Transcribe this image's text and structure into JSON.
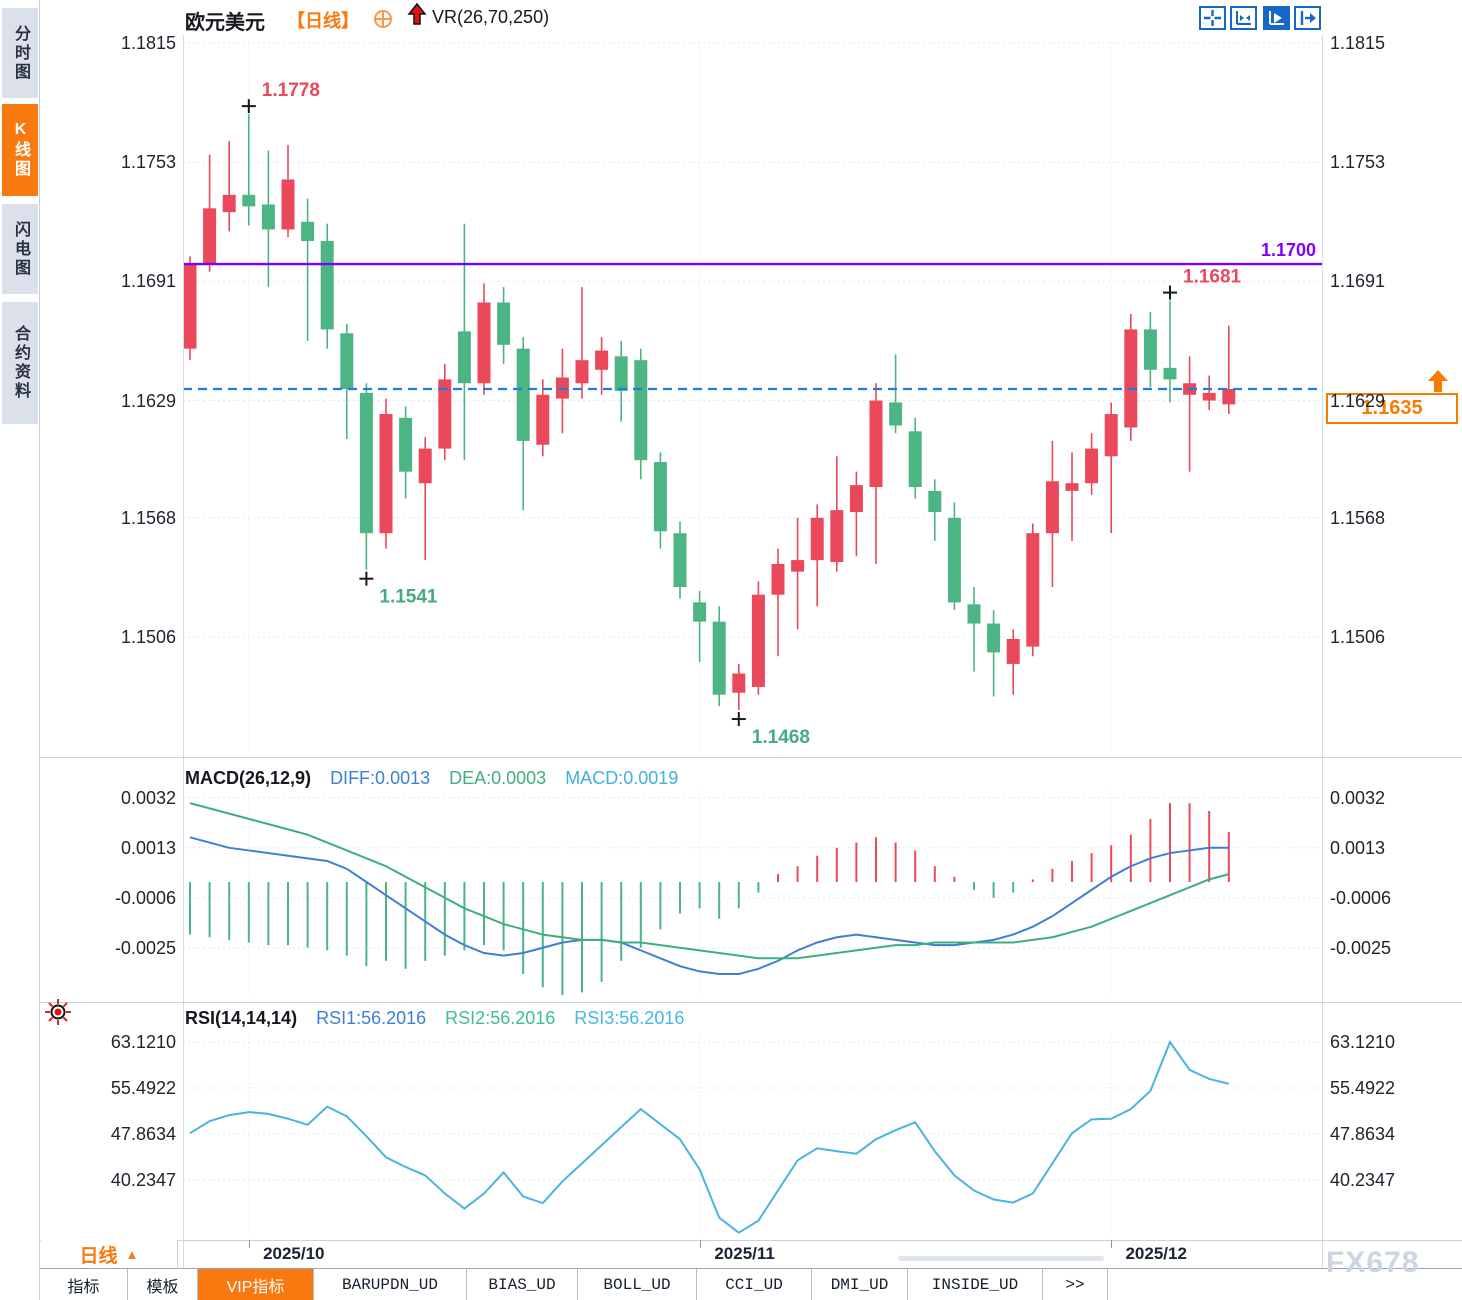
{
  "header": {
    "symbol": "欧元美元",
    "period_tag": "【日线】",
    "overlay_indicator": "VR(26,70,250)",
    "toolbar_icons": [
      "pan-crosshair",
      "axis-range",
      "axis-pointer-active",
      "exit-right"
    ]
  },
  "sidebar": {
    "items": [
      {
        "label": "分时图",
        "active": false
      },
      {
        "label": "K线图",
        "active": true
      },
      {
        "label": "闪电图",
        "active": false
      },
      {
        "label": "合约资料",
        "active": false
      }
    ]
  },
  "colors": {
    "up": "#e9495b",
    "down": "#4cb583",
    "purple_line": "#8000ff",
    "last_price_line": "#1d7de0",
    "price_box": "#f57c00",
    "diff_line": "#3d7fd6",
    "dea_line": "#3fae7e",
    "rsi_line": "#4bb3e0",
    "annotation_high": "#e8495b",
    "annotation_low": "#45ab7e",
    "active_tab": "#f8790f"
  },
  "chart_data": [
    {
      "type": "candlestick",
      "title": "欧元美元 日线 (EUR/USD daily)",
      "ylim": [
        1.1445,
        1.1815
      ],
      "y_ticks": [
        "1.1815",
        "1.1753",
        "1.1691",
        "1.1629",
        "1.1568",
        "1.1506"
      ],
      "x_dates": [
        {
          "label": "2025/10",
          "index": 3
        },
        {
          "label": "2025/11",
          "index": 26
        },
        {
          "label": "2025/12",
          "index": 47
        }
      ],
      "hline": {
        "value": 1.17,
        "label": "1.1700"
      },
      "last_price": {
        "value": 1.1635,
        "label": "1.1635"
      },
      "annotations": [
        {
          "index": 3,
          "label": "1.1778",
          "side": "high"
        },
        {
          "index": 9,
          "label": "1.1541",
          "side": "low"
        },
        {
          "index": 28,
          "label": "1.1468",
          "side": "low"
        },
        {
          "index": 50,
          "label": "1.1681",
          "side": "high"
        }
      ],
      "ohlc": [
        [
          1.1656,
          1.1704,
          1.165,
          1.17
        ],
        [
          1.17,
          1.1757,
          1.1696,
          1.1729
        ],
        [
          1.1727,
          1.1764,
          1.1717,
          1.1736
        ],
        [
          1.1736,
          1.1778,
          1.172,
          1.173
        ],
        [
          1.1731,
          1.1759,
          1.1688,
          1.1718
        ],
        [
          1.1718,
          1.1762,
          1.1714,
          1.1744
        ],
        [
          1.1722,
          1.1734,
          1.166,
          1.1712
        ],
        [
          1.1712,
          1.1721,
          1.1656,
          1.1666
        ],
        [
          1.1664,
          1.1669,
          1.1609,
          1.1635
        ],
        [
          1.1633,
          1.1638,
          1.1541,
          1.156
        ],
        [
          1.156,
          1.163,
          1.1552,
          1.1622
        ],
        [
          1.162,
          1.1626,
          1.1578,
          1.1592
        ],
        [
          1.1586,
          1.161,
          1.1546,
          1.1604
        ],
        [
          1.1604,
          1.1648,
          1.1598,
          1.164
        ],
        [
          1.1665,
          1.1721,
          1.1598,
          1.1638
        ],
        [
          1.1638,
          1.169,
          1.1632,
          1.168
        ],
        [
          1.168,
          1.1688,
          1.1648,
          1.1658
        ],
        [
          1.1656,
          1.1662,
          1.1572,
          1.1608
        ],
        [
          1.1606,
          1.164,
          1.16,
          1.1632
        ],
        [
          1.163,
          1.1656,
          1.1612,
          1.1641
        ],
        [
          1.1638,
          1.1688,
          1.163,
          1.165
        ],
        [
          1.1645,
          1.1662,
          1.1632,
          1.1655
        ],
        [
          1.1652,
          1.166,
          1.1618,
          1.1634
        ],
        [
          1.165,
          1.1656,
          1.1588,
          1.1598
        ],
        [
          1.1597,
          1.1602,
          1.1552,
          1.1561
        ],
        [
          1.156,
          1.1566,
          1.1526,
          1.1532
        ],
        [
          1.1524,
          1.153,
          1.1493,
          1.1514
        ],
        [
          1.1514,
          1.1522,
          1.147,
          1.1476
        ],
        [
          1.1477,
          1.1492,
          1.1468,
          1.1487
        ],
        [
          1.148,
          1.1535,
          1.1476,
          1.1528
        ],
        [
          1.1528,
          1.1552,
          1.1496,
          1.1544
        ],
        [
          1.154,
          1.1568,
          1.151,
          1.1546
        ],
        [
          1.1546,
          1.1575,
          1.1522,
          1.1568
        ],
        [
          1.1545,
          1.16,
          1.154,
          1.1572
        ],
        [
          1.1571,
          1.1592,
          1.1548,
          1.1585
        ],
        [
          1.1584,
          1.1638,
          1.1544,
          1.1629
        ],
        [
          1.1628,
          1.1653,
          1.1612,
          1.1616
        ],
        [
          1.1613,
          1.162,
          1.1578,
          1.1584
        ],
        [
          1.1582,
          1.1588,
          1.1556,
          1.1571
        ],
        [
          1.1568,
          1.1576,
          1.152,
          1.1524
        ],
        [
          1.1523,
          1.1532,
          1.1488,
          1.1513
        ],
        [
          1.1513,
          1.152,
          1.1475,
          1.1498
        ],
        [
          1.1492,
          1.151,
          1.1476,
          1.1505
        ],
        [
          1.1501,
          1.1565,
          1.1496,
          1.156
        ],
        [
          1.156,
          1.1608,
          1.1532,
          1.1587
        ],
        [
          1.1582,
          1.1602,
          1.1556,
          1.1586
        ],
        [
          1.1586,
          1.1612,
          1.158,
          1.1604
        ],
        [
          1.16,
          1.1628,
          1.156,
          1.1622
        ],
        [
          1.1615,
          1.1674,
          1.1608,
          1.1666
        ],
        [
          1.1666,
          1.1675,
          1.1636,
          1.1645
        ],
        [
          1.1646,
          1.1681,
          1.1628,
          1.164
        ],
        [
          1.1632,
          1.1652,
          1.1592,
          1.1638
        ],
        [
          1.1629,
          1.1642,
          1.1624,
          1.1633
        ],
        [
          1.1627,
          1.1668,
          1.1622,
          1.1635
        ]
      ]
    },
    {
      "type": "bar",
      "title": "MACD(26,12,9)",
      "readings": [
        {
          "label": "DIFF:0.0013",
          "color": "#3d7fd6"
        },
        {
          "label": "DEA:0.0003",
          "color": "#3fae7e"
        },
        {
          "label": "MACD:0.0019",
          "color": "#3fb0e0"
        }
      ],
      "y_ticks": [
        "0.0032",
        "0.0013",
        "-0.0006",
        "-0.0025"
      ],
      "unit": 0.0001,
      "hist": [
        -20,
        -21,
        -22,
        -23,
        -24,
        -24,
        -25,
        -26,
        -28,
        -32,
        -30,
        -33,
        -30,
        -28,
        -26,
        -24,
        -26,
        -35,
        -40,
        -43,
        -42,
        -38,
        -30,
        -25,
        -18,
        -12,
        -10,
        -14,
        -10,
        -4,
        3,
        6,
        10,
        13,
        15,
        17,
        15,
        12,
        6,
        2,
        -3,
        -6,
        -4,
        1,
        5,
        8,
        11,
        14,
        18,
        24,
        30,
        30,
        27,
        19
      ],
      "diff": [
        17,
        15,
        13,
        12,
        11,
        10,
        9,
        8,
        5,
        0,
        -5,
        -10,
        -15,
        -20,
        -24,
        -27,
        -28,
        -27,
        -25,
        -23,
        -22,
        -22,
        -23,
        -26,
        -29,
        -32,
        -34,
        -35,
        -35,
        -33,
        -30,
        -26,
        -23,
        -21,
        -20,
        -21,
        -22,
        -23,
        -24,
        -24,
        -23,
        -22,
        -20,
        -17,
        -13,
        -8,
        -3,
        2,
        6,
        9,
        11,
        12,
        13,
        13
      ],
      "dea": [
        30,
        28,
        26,
        24,
        22,
        20,
        18,
        15,
        12,
        9,
        6,
        2,
        -2,
        -6,
        -10,
        -13,
        -16,
        -18,
        -20,
        -21,
        -22,
        -22,
        -23,
        -23,
        -24,
        -25,
        -26,
        -27,
        -28,
        -29,
        -29,
        -29,
        -28,
        -27,
        -26,
        -25,
        -24,
        -24,
        -23,
        -23,
        -23,
        -23,
        -23,
        -22,
        -21,
        -19,
        -17,
        -14,
        -11,
        -8,
        -5,
        -2,
        1,
        3
      ]
    },
    {
      "type": "line",
      "title": "RSI(14,14,14)",
      "readings": [
        {
          "label": "RSI1:56.2016",
          "color": "#3d7fd6"
        },
        {
          "label": "RSI2:56.2016",
          "color": "#3fbf8f"
        },
        {
          "label": "RSI3:56.2016",
          "color": "#45b7e8"
        }
      ],
      "y_ticks": [
        "63.1210",
        "55.4922",
        "47.8634",
        "40.2347"
      ],
      "values": [
        48,
        50,
        51,
        51.5,
        51.2,
        50.4,
        49.4,
        52.4,
        50.8,
        47.5,
        44,
        42.4,
        41,
        38,
        35.5,
        38,
        41.5,
        37.5,
        36.4,
        40,
        43,
        46,
        49,
        52,
        49.5,
        47,
        42,
        34,
        31.5,
        33.5,
        38.5,
        43.5,
        45.5,
        45,
        44.6,
        47,
        48.5,
        49.8,
        45,
        41,
        38.5,
        37,
        36.5,
        38,
        43,
        48,
        50.3,
        50.4,
        52,
        55,
        63.1,
        58.5,
        57,
        56.2
      ]
    }
  ],
  "bottom": {
    "period_label": "日线",
    "tabs": [
      {
        "label": "指标",
        "active": false,
        "cn": true
      },
      {
        "label": "模板",
        "active": false,
        "cn": true
      },
      {
        "label": "VIP指标",
        "active": true,
        "cn": true
      },
      {
        "label": "BARUPDN_UD",
        "active": false,
        "cn": false
      },
      {
        "label": "BIAS_UD",
        "active": false,
        "cn": false
      },
      {
        "label": "BOLL_UD",
        "active": false,
        "cn": false
      },
      {
        "label": "CCI_UD",
        "active": false,
        "cn": false
      },
      {
        "label": "DMI_UD",
        "active": false,
        "cn": false
      },
      {
        "label": "INSIDE_UD",
        "active": false,
        "cn": false
      },
      {
        "label": ">>",
        "active": false,
        "cn": false
      }
    ],
    "watermark": "FX678"
  }
}
